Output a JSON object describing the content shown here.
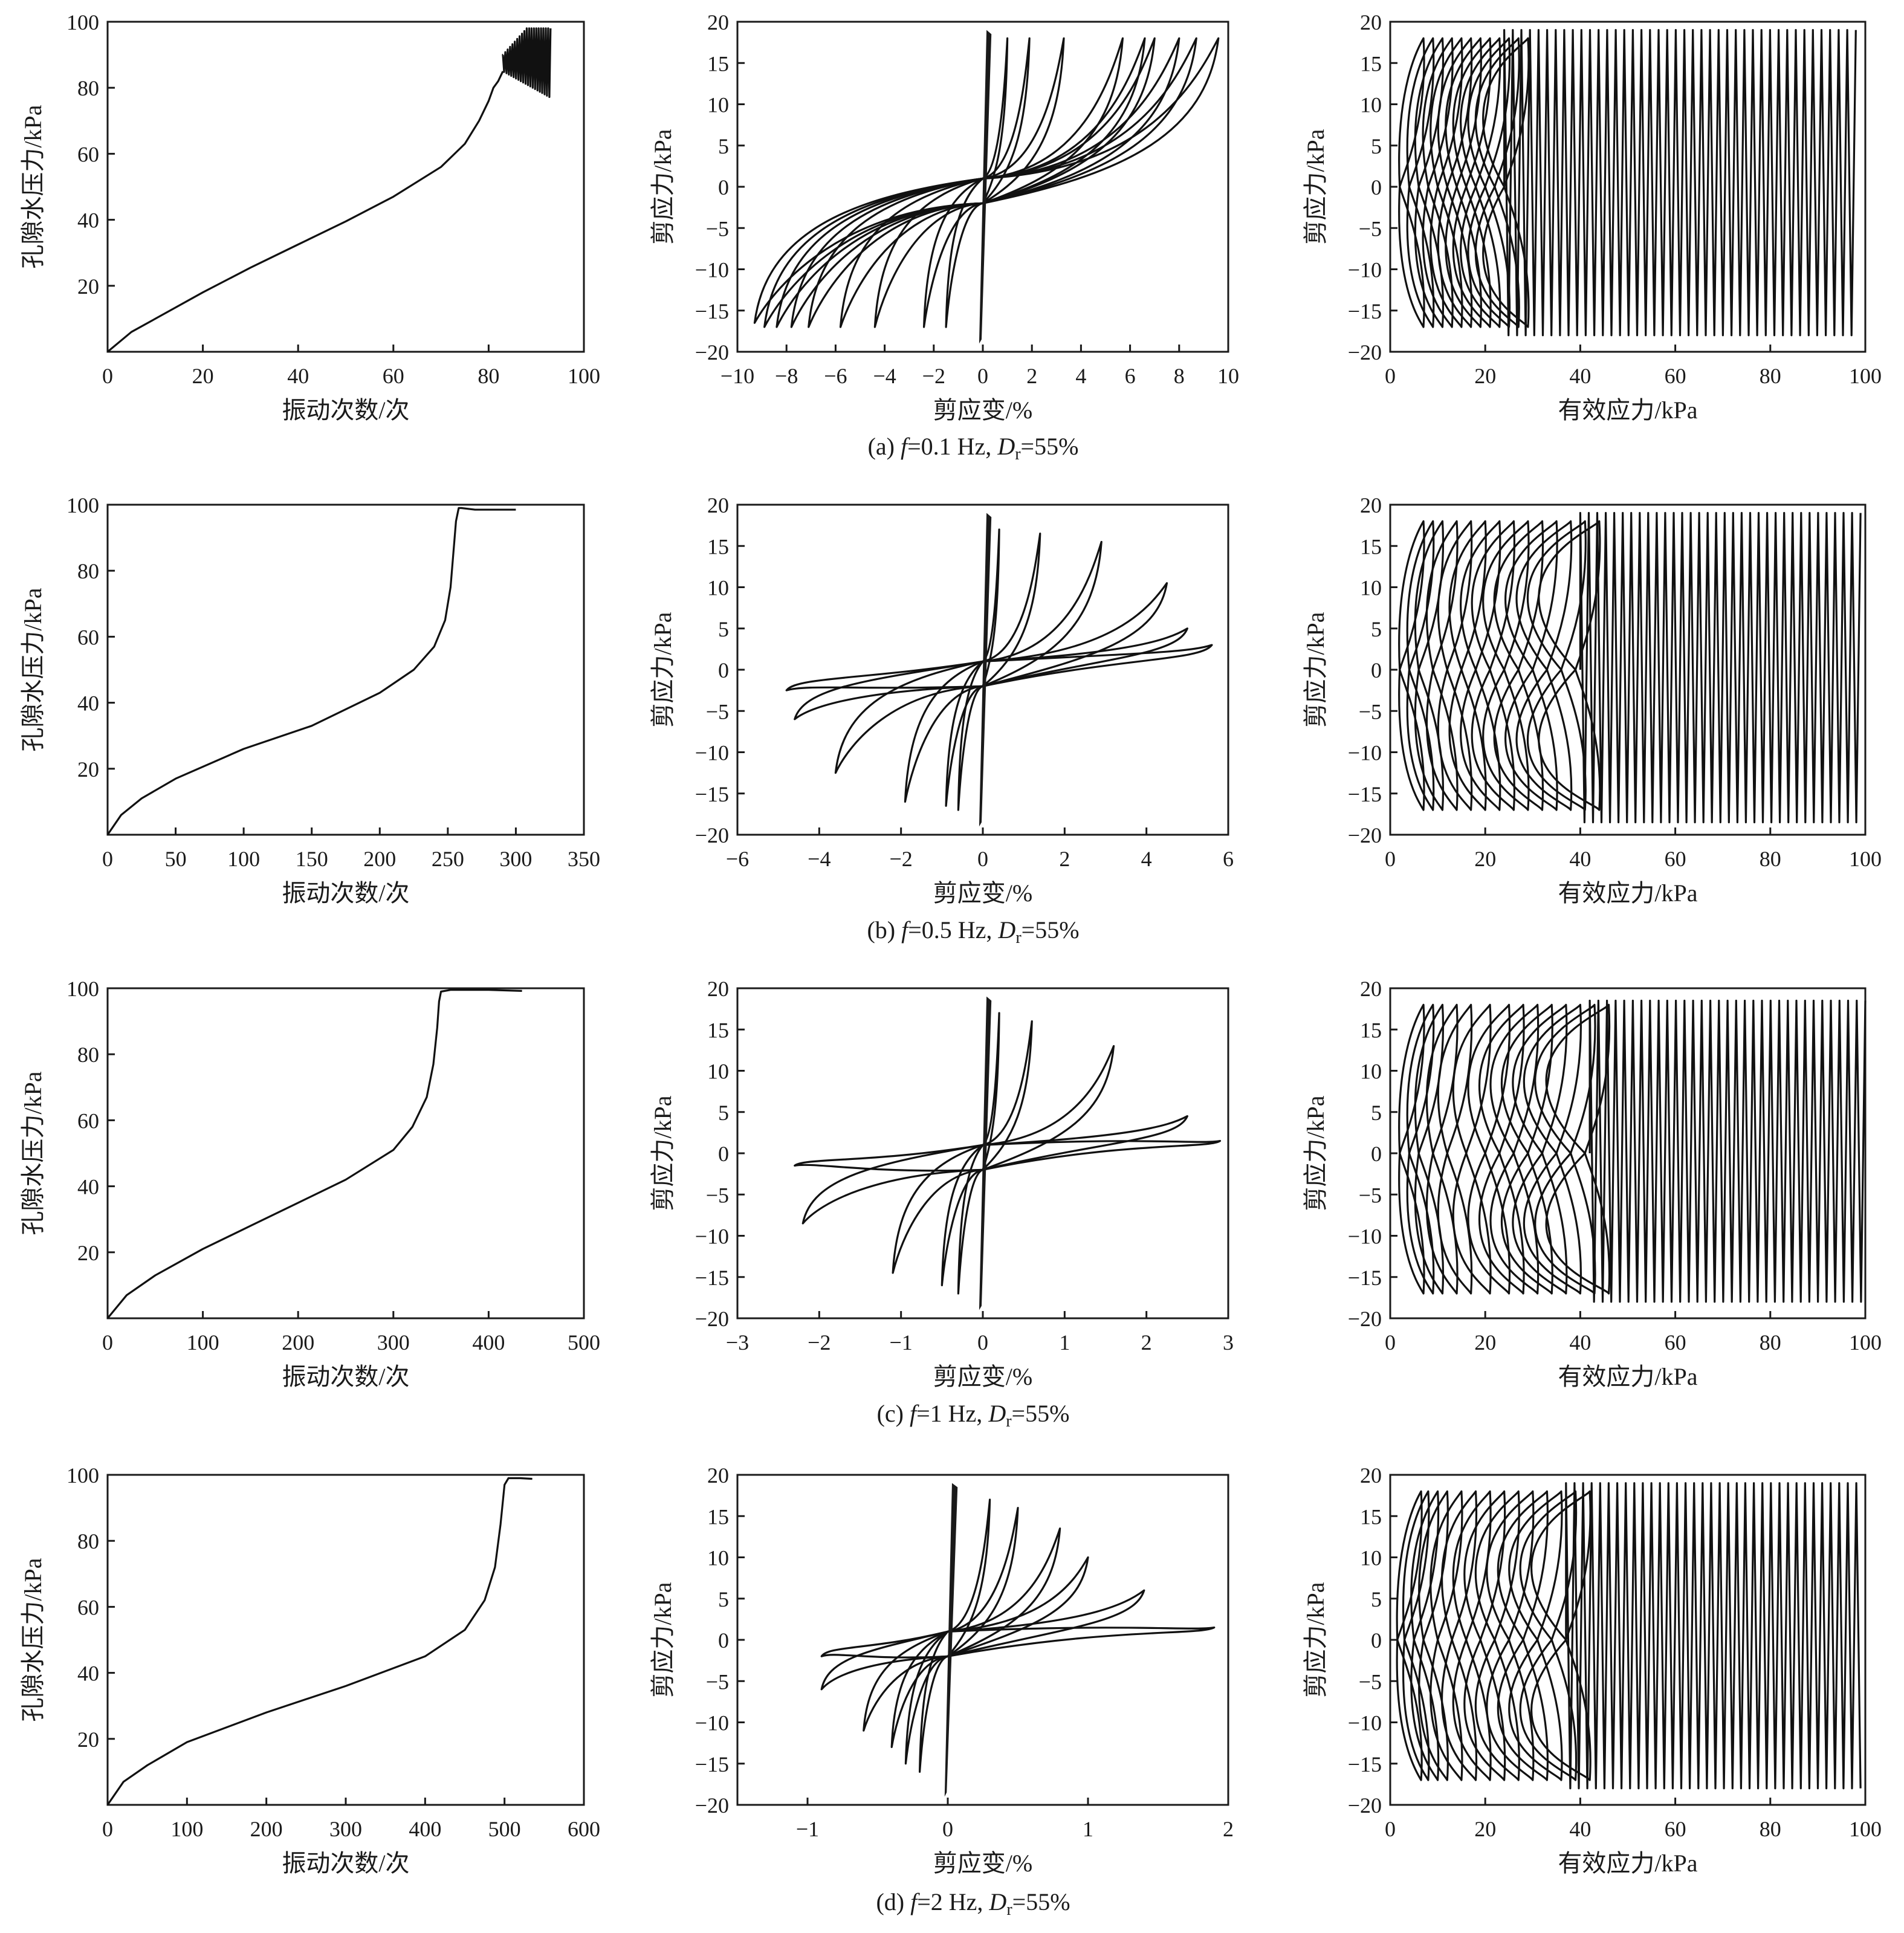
{
  "figure": {
    "panels": [
      {
        "id": "a",
        "caption_prefix": "(a) ",
        "caption_italic1": "f",
        "caption_mid": "=0.1 Hz, ",
        "caption_italic2": "D",
        "caption_sub": "r",
        "caption_suffix": "=55%"
      },
      {
        "id": "b",
        "caption_prefix": "(b) ",
        "caption_italic1": "f",
        "caption_mid": "=0.5 Hz, ",
        "caption_italic2": "D",
        "caption_sub": "r",
        "caption_suffix": "=55%"
      },
      {
        "id": "c",
        "caption_prefix": "(c) ",
        "caption_italic1": "f",
        "caption_mid": "=1 Hz, ",
        "caption_italic2": "D",
        "caption_sub": "r",
        "caption_suffix": "=55%"
      },
      {
        "id": "d",
        "caption_prefix": "(d) ",
        "caption_italic1": "f",
        "caption_mid": "=2 Hz, ",
        "caption_italic2": "D",
        "caption_sub": "r",
        "caption_suffix": "=55%"
      }
    ]
  },
  "chart_data": [
    {
      "id": "a-pwp",
      "type": "line",
      "xlabel": "振动次数/次",
      "ylabel": "孔隙水压力/kPa",
      "xlim": [
        0,
        100
      ],
      "ylim": [
        0,
        100
      ],
      "xticks": [
        0,
        20,
        40,
        60,
        80,
        100
      ],
      "yticks": [
        20,
        40,
        60,
        80,
        100
      ],
      "x": [
        0,
        5,
        10,
        20,
        30,
        40,
        50,
        60,
        70,
        75,
        78,
        80,
        81,
        82,
        83
      ],
      "y": [
        0,
        6,
        10,
        18,
        25.5,
        32.5,
        39.5,
        47,
        56,
        63,
        70,
        76,
        80,
        82,
        85
      ],
      "oscillation": {
        "x_from": 83,
        "x_to": 93,
        "y_min": [
          85,
          77
        ],
        "y_max": [
          90,
          98
        ]
      }
    },
    {
      "id": "a-stress-strain",
      "type": "line",
      "xlabel": "剪应变/%",
      "ylabel": "剪应力/kPa",
      "xlim": [
        -10,
        10
      ],
      "ylim": [
        -20,
        20
      ],
      "xticks": [
        -10,
        -8,
        -6,
        -4,
        -2,
        0,
        2,
        4,
        6,
        8,
        10
      ],
      "yticks": [
        -20,
        -15,
        -10,
        -5,
        0,
        5,
        10,
        15,
        20
      ],
      "loops": [
        {
          "x_max": 1.0,
          "x_min": -1.5,
          "tau_max": 18,
          "tau_min": -17
        },
        {
          "x_max": 1.9,
          "x_min": -2.4,
          "tau_max": 18,
          "tau_min": -17
        },
        {
          "x_max": 3.3,
          "x_min": -4.4,
          "tau_max": 18,
          "tau_min": -17
        },
        {
          "x_max": 5.7,
          "x_min": -5.8,
          "tau_max": 18,
          "tau_min": -17
        },
        {
          "x_max": 6.6,
          "x_min": -7.1,
          "tau_max": 18,
          "tau_min": -17
        },
        {
          "x_max": 7.0,
          "x_min": -7.8,
          "tau_max": 18,
          "tau_min": -17
        },
        {
          "x_max": 8.0,
          "x_min": -8.4,
          "tau_max": 18,
          "tau_min": -17
        },
        {
          "x_max": 8.7,
          "x_min": -8.9,
          "tau_max": 18,
          "tau_min": -17
        },
        {
          "x_max": 9.6,
          "x_min": -9.3,
          "tau_max": 18,
          "tau_min": -16.5
        }
      ]
    },
    {
      "id": "a-stress-path",
      "type": "line",
      "xlabel": "有效应力/kPa",
      "ylabel": "剪应力/kPa",
      "xlim": [
        0,
        100
      ],
      "ylim": [
        -20,
        20
      ],
      "xticks": [
        0,
        20,
        40,
        60,
        80,
        100
      ],
      "yticks": [
        -20,
        -15,
        -10,
        -5,
        0,
        5,
        10,
        15,
        20
      ],
      "loops": [
        2,
        4,
        6,
        8,
        10,
        12,
        14,
        16,
        18,
        20,
        22,
        24
      ],
      "dense_band": {
        "x_from": 24,
        "x_to": 98,
        "tau_max": 19,
        "tau_min": -18
      }
    },
    {
      "id": "b-pwp",
      "type": "line",
      "xlabel": "振动次数/次",
      "ylabel": "孔隙水压力/kPa",
      "xlim": [
        0,
        350
      ],
      "ylim": [
        0,
        100
      ],
      "xticks": [
        0,
        50,
        100,
        150,
        200,
        250,
        300,
        350
      ],
      "yticks": [
        20,
        40,
        60,
        80,
        100
      ],
      "x": [
        0,
        10,
        25,
        50,
        100,
        150,
        200,
        225,
        240,
        248,
        252,
        254,
        256,
        258,
        260,
        270,
        300
      ],
      "y": [
        0,
        6,
        11,
        17,
        26,
        33,
        43,
        50,
        57,
        65,
        75,
        85,
        95,
        99,
        99,
        98.5,
        98.5
      ]
    },
    {
      "id": "b-stress-strain",
      "type": "line",
      "xlabel": "剪应变/%",
      "ylabel": "剪应力/kPa",
      "xlim": [
        -6,
        6
      ],
      "ylim": [
        -20,
        20
      ],
      "xticks": [
        -6,
        -4,
        -2,
        0,
        2,
        4,
        6
      ],
      "yticks": [
        -20,
        -15,
        -10,
        -5,
        0,
        5,
        10,
        15,
        20
      ],
      "loops": [
        {
          "x_max": 0.4,
          "x_min": -0.6,
          "tau_max": 17,
          "tau_min": -17
        },
        {
          "x_max": 1.4,
          "x_min": -0.9,
          "tau_max": 16.5,
          "tau_min": -16.5
        },
        {
          "x_max": 2.9,
          "x_min": -1.9,
          "tau_max": 15.5,
          "tau_min": -16
        },
        {
          "x_max": 4.5,
          "x_min": -3.6,
          "tau_max": 10.5,
          "tau_min": -12.5
        },
        {
          "x_max": 5.0,
          "x_min": -4.6,
          "tau_max": 5,
          "tau_min": -6
        },
        {
          "x_max": 5.6,
          "x_min": -4.8,
          "tau_max": 3,
          "tau_min": -2.5
        }
      ]
    },
    {
      "id": "b-stress-path",
      "type": "line",
      "xlabel": "有效应力/kPa",
      "ylabel": "剪应力/kPa",
      "xlim": [
        0,
        100
      ],
      "ylim": [
        -20,
        20
      ],
      "xticks": [
        0,
        20,
        40,
        60,
        80,
        100
      ],
      "yticks": [
        -20,
        -15,
        -10,
        -5,
        0,
        5,
        10,
        15,
        20
      ],
      "loops": [
        2,
        4,
        6,
        9,
        12,
        15,
        18,
        21,
        24,
        27,
        30,
        33,
        36,
        39
      ],
      "dense_band": {
        "x_from": 40,
        "x_to": 99,
        "tau_max": 19,
        "tau_min": -18.5
      }
    },
    {
      "id": "c-pwp",
      "type": "line",
      "xlabel": "振动次数/次",
      "ylabel": "孔隙水压力/kPa",
      "xlim": [
        0,
        500
      ],
      "ylim": [
        0,
        100
      ],
      "xticks": [
        0,
        100,
        200,
        300,
        400,
        500
      ],
      "yticks": [
        20,
        40,
        60,
        80,
        100
      ],
      "x": [
        0,
        20,
        50,
        100,
        150,
        200,
        250,
        300,
        320,
        335,
        342,
        346,
        348,
        350,
        360,
        400,
        435
      ],
      "y": [
        0,
        7,
        13,
        21,
        28,
        35,
        42,
        51,
        58,
        67,
        77,
        88,
        96,
        99,
        99.5,
        99.5,
        99.2
      ]
    },
    {
      "id": "c-stress-strain",
      "type": "line",
      "xlabel": "剪应变/%",
      "ylabel": "剪应力/kPa",
      "xlim": [
        -3,
        3
      ],
      "ylim": [
        -20,
        20
      ],
      "xticks": [
        -3,
        -2,
        -1,
        0,
        1,
        2,
        3
      ],
      "yticks": [
        -20,
        -15,
        -10,
        -5,
        0,
        5,
        10,
        15,
        20
      ],
      "loops": [
        {
          "x_max": 0.2,
          "x_min": -0.3,
          "tau_max": 17,
          "tau_min": -17
        },
        {
          "x_max": 0.6,
          "x_min": -0.5,
          "tau_max": 16,
          "tau_min": -16
        },
        {
          "x_max": 1.6,
          "x_min": -1.1,
          "tau_max": 13,
          "tau_min": -14.5
        },
        {
          "x_max": 2.5,
          "x_min": -2.2,
          "tau_max": 4.5,
          "tau_min": -8.5
        },
        {
          "x_max": 2.9,
          "x_min": -2.3,
          "tau_max": 1.5,
          "tau_min": -1.5
        }
      ]
    },
    {
      "id": "c-stress-path",
      "type": "line",
      "xlabel": "有效应力/kPa",
      "ylabel": "剪应力/kPa",
      "xlim": [
        0,
        100
      ],
      "ylim": [
        -20,
        20
      ],
      "xticks": [
        0,
        20,
        40,
        60,
        80,
        100
      ],
      "yticks": [
        -20,
        -15,
        -10,
        -5,
        0,
        5,
        10,
        15,
        20
      ],
      "loops": [
        2,
        4,
        6,
        9,
        12,
        16,
        20,
        23,
        26,
        29,
        32,
        35,
        38,
        41
      ],
      "dense_band": {
        "x_from": 42,
        "x_to": 100,
        "tau_max": 18.5,
        "tau_min": -18
      }
    },
    {
      "id": "d-pwp",
      "type": "line",
      "xlabel": "振动次数/次",
      "ylabel": "孔隙水压力/kPa",
      "xlim": [
        0,
        600
      ],
      "ylim": [
        0,
        100
      ],
      "xticks": [
        0,
        100,
        200,
        300,
        400,
        500,
        600
      ],
      "yticks": [
        20,
        40,
        60,
        80,
        100
      ],
      "x": [
        0,
        20,
        50,
        100,
        200,
        300,
        400,
        450,
        475,
        488,
        495,
        500,
        505,
        520,
        535
      ],
      "y": [
        0,
        7,
        12,
        19,
        28,
        36,
        45,
        53,
        62,
        72,
        85,
        97,
        99,
        99,
        98.8
      ]
    },
    {
      "id": "d-stress-strain",
      "type": "line",
      "xlabel": "剪应变/%",
      "ylabel": "剪应力/kPa",
      "xlim": [
        -1.5,
        2
      ],
      "ylim": [
        -20,
        20
      ],
      "xticks": [
        -1,
        0,
        1,
        2
      ],
      "yticks": [
        -20,
        -15,
        -10,
        -5,
        0,
        5,
        10,
        15,
        20
      ],
      "loops": [
        {
          "x_max": 0.3,
          "x_min": -0.2,
          "tau_max": 17,
          "tau_min": -16
        },
        {
          "x_max": 0.5,
          "x_min": -0.3,
          "tau_max": 16,
          "tau_min": -15
        },
        {
          "x_max": 0.8,
          "x_min": -0.4,
          "tau_max": 13.5,
          "tau_min": -13
        },
        {
          "x_max": 1.0,
          "x_min": -0.6,
          "tau_max": 10,
          "tau_min": -11
        },
        {
          "x_max": 1.4,
          "x_min": -0.9,
          "tau_max": 6,
          "tau_min": -6
        },
        {
          "x_max": 1.9,
          "x_min": -0.9,
          "tau_max": 1.5,
          "tau_min": -2
        }
      ]
    },
    {
      "id": "d-stress-path",
      "type": "line",
      "xlabel": "有效应力/kPa",
      "ylabel": "剪应力/kPa",
      "xlim": [
        0,
        100
      ],
      "ylim": [
        -20,
        20
      ],
      "xticks": [
        0,
        20,
        40,
        60,
        80,
        100
      ],
      "yticks": [
        -20,
        -15,
        -10,
        -5,
        0,
        5,
        10,
        15,
        20
      ],
      "loops": [
        1.5,
        3,
        5,
        7,
        10,
        13,
        16,
        19,
        22,
        25,
        28,
        31,
        34,
        37
      ],
      "dense_band": {
        "x_from": 37,
        "x_to": 99,
        "tau_max": 19,
        "tau_min": -18
      }
    }
  ]
}
